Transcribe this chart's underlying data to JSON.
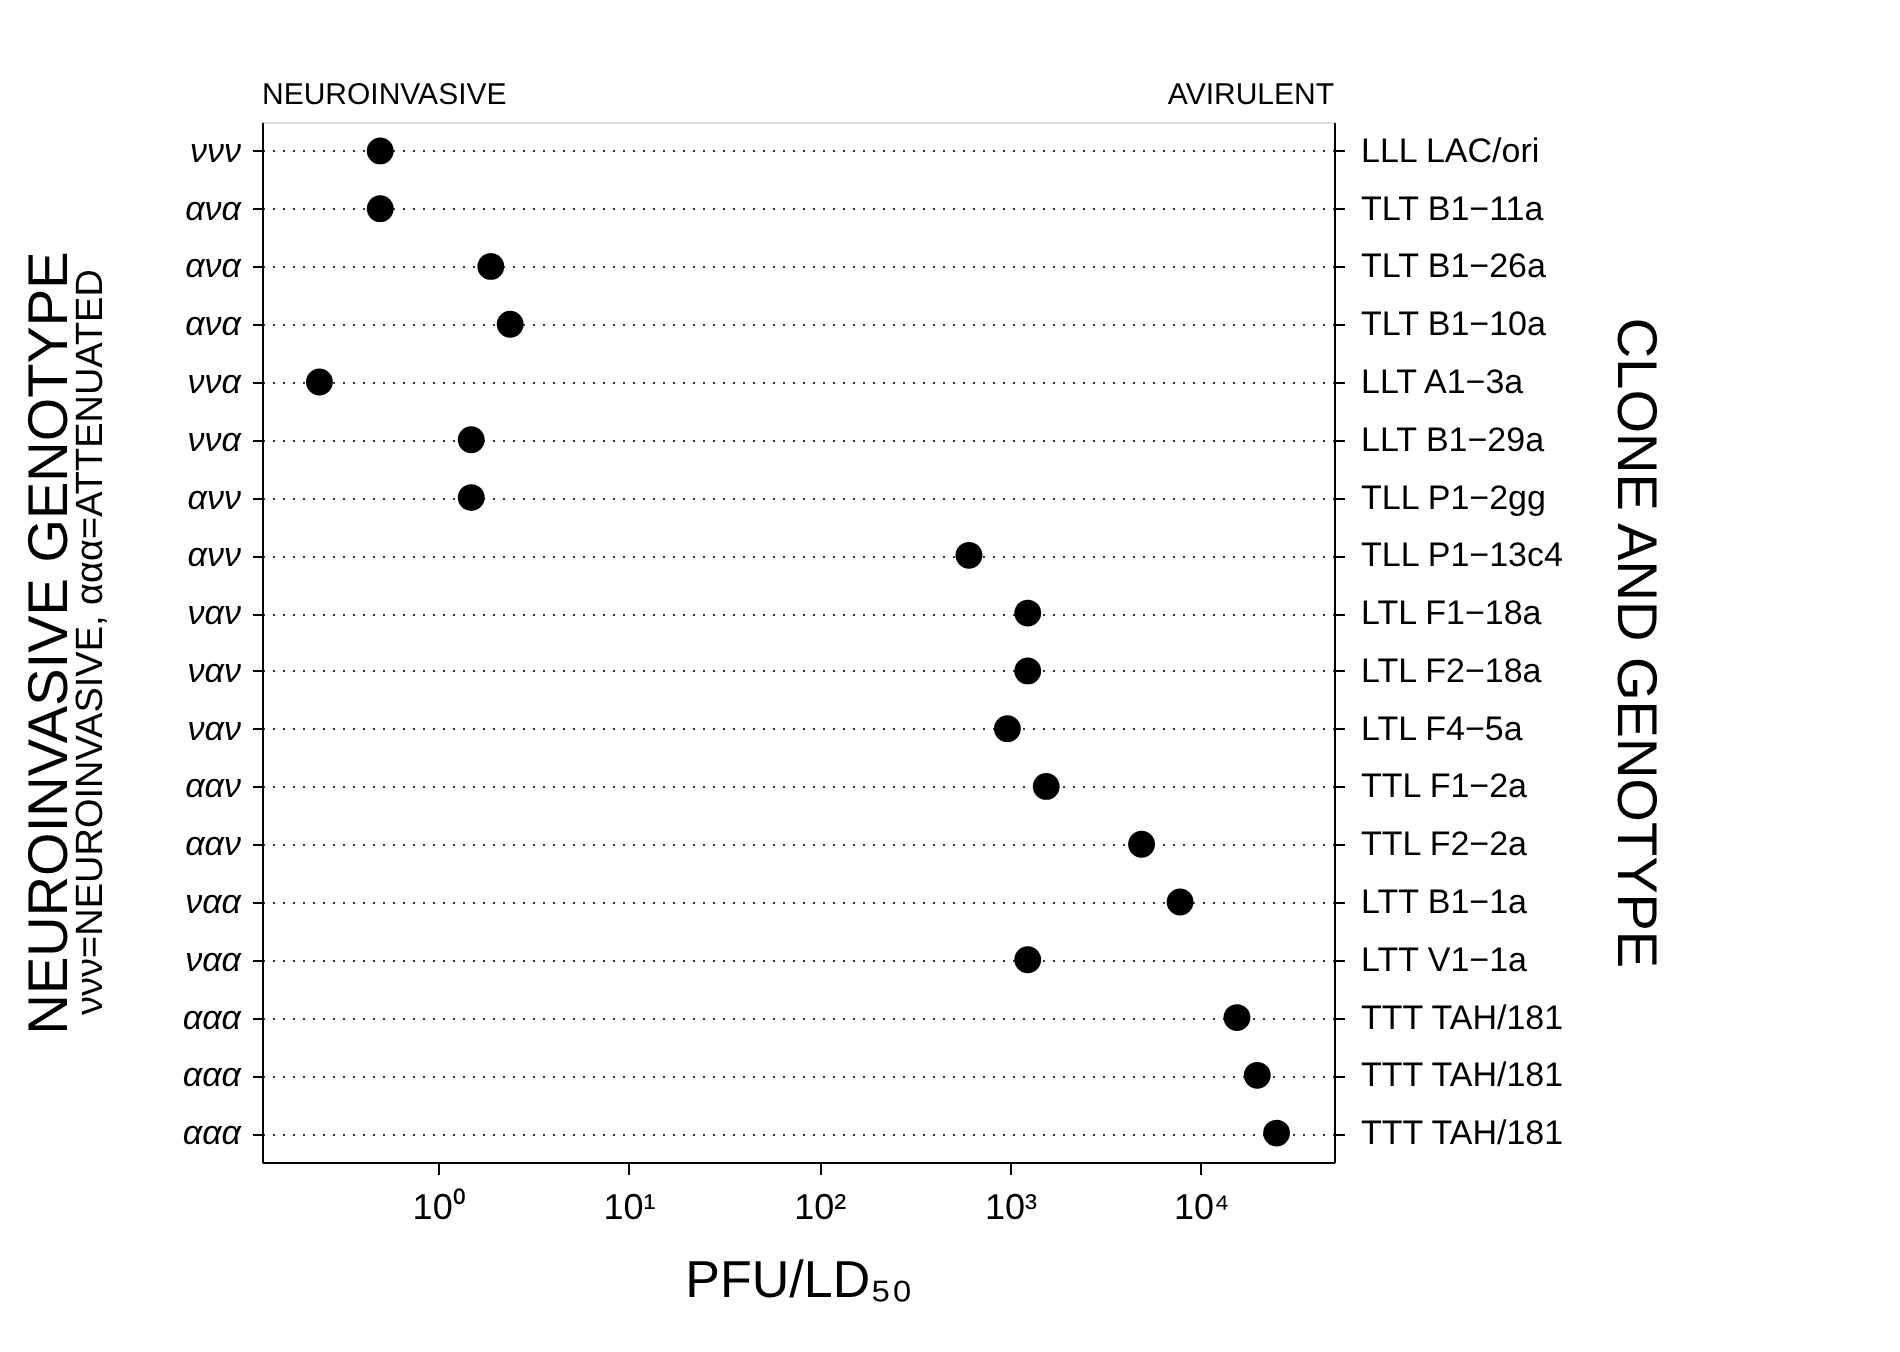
{
  "chart_data": {
    "type": "scatter",
    "orientation": "horizontal",
    "categories": [
      "ννν",
      "ανα",
      "ανα",
      "ανα",
      "ννα",
      "ννα",
      "ανν",
      "ανν",
      "ναν",
      "ναν",
      "ναν",
      "ααν",
      "ααν",
      "ναα",
      "ναα",
      "ααα",
      "ααα",
      "ααα"
    ],
    "y2_categories": [
      "LLL  LAC/ori",
      "TLT  B1−11a",
      "TLT  B1−26a",
      "TLT  B1−10a",
      "LLT  A1−3a",
      "LLT  B1−29a",
      "TLL  P1−2gg",
      "TLL  P1−13c4",
      "LTL  F1−18a",
      "LTL  F2−18a",
      "LTL  F4−5a",
      "TTL  F1−2a",
      "TTL  F2−2a",
      "LTT  B1−1a",
      "LTT  V1−1a",
      "TTT  TAH/181",
      "TTT  TAH/181",
      "TTT TAH/181"
    ],
    "series": [
      {
        "color": "#000000",
        "values": [
          0.5,
          0.5,
          1.9,
          2.4,
          0.24,
          1.5,
          1.5,
          610,
          1240,
          1240,
          970,
          1550,
          4900,
          7800,
          1240,
          15500,
          19800,
          25000
        ]
      }
    ],
    "xlabel": "PFU/LD₅₀",
    "ylabel": "NEUROINVASIVE GENOTYPE",
    "y2label": "CLONE AND GENOTYPE",
    "annotations": [
      "NEUROINVASIVE",
      "AVIRULENT",
      "ννν=NEUROINVASIVE, ααα=ATTENUATED"
    ],
    "log": "x",
    "xlim": [
      0.12,
      50000
    ],
    "xticks": [
      {
        "value": 1,
        "label": "10⁰"
      },
      {
        "value": 10,
        "label": "10¹"
      },
      {
        "value": 100,
        "label": "10²"
      },
      {
        "value": 1000,
        "label": "10³"
      },
      {
        "value": 10000,
        "label": "10⁴"
      }
    ],
    "grid": "y",
    "line_style": "dotted",
    "marker": "circle"
  }
}
